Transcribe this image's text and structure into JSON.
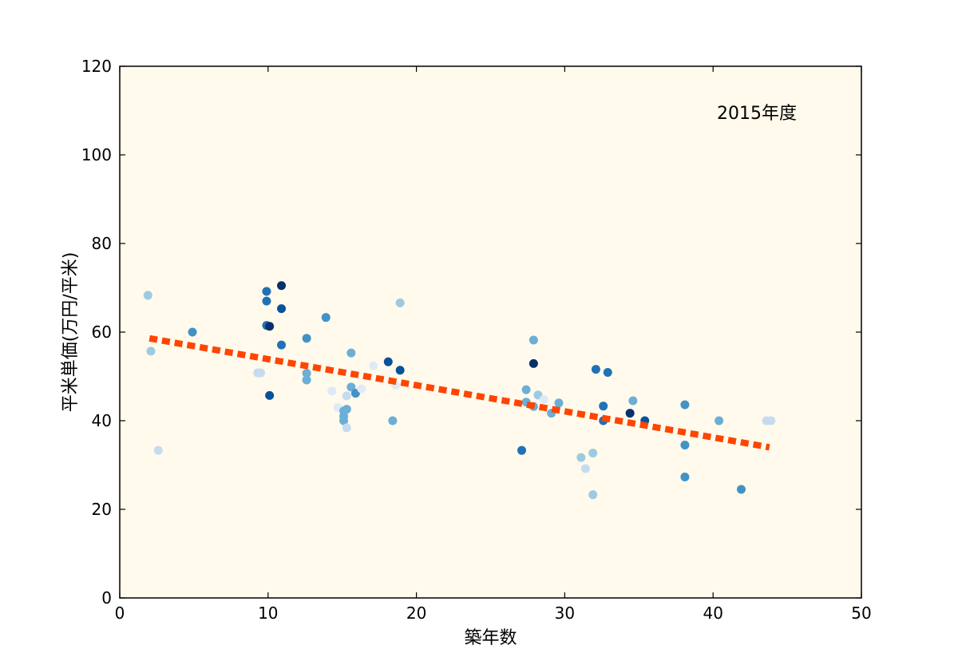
{
  "chart_data": {
    "type": "scatter",
    "title": "",
    "annotation": "2015年度",
    "xlabel": "築年数",
    "ylabel": "平米単価(万円/平米)",
    "xlim": [
      0,
      50
    ],
    "ylim": [
      0,
      120
    ],
    "xticks": [
      0,
      10,
      20,
      30,
      40,
      50
    ],
    "yticks": [
      0,
      20,
      40,
      60,
      80,
      100,
      120
    ],
    "grid": false,
    "plot_background": "#fffaeb",
    "trend_line": {
      "x": [
        2,
        43.8
      ],
      "y": [
        58.6,
        34.0
      ],
      "color": "#ff4500",
      "style": "dashed"
    },
    "points": [
      {
        "x": 1.9,
        "y": 68.3,
        "color": "#9ecae1"
      },
      {
        "x": 2.1,
        "y": 55.7,
        "color": "#9ecae1"
      },
      {
        "x": 2.6,
        "y": 33.3,
        "color": "#c6dbef"
      },
      {
        "x": 4.9,
        "y": 60.0,
        "color": "#4292c6"
      },
      {
        "x": 9.3,
        "y": 50.8,
        "color": "#c6dbef"
      },
      {
        "x": 9.5,
        "y": 50.8,
        "color": "#c6dbef"
      },
      {
        "x": 9.9,
        "y": 69.2,
        "color": "#2171b5"
      },
      {
        "x": 9.9,
        "y": 67.0,
        "color": "#2171b5"
      },
      {
        "x": 9.9,
        "y": 61.5,
        "color": "#2171b5"
      },
      {
        "x": 10.1,
        "y": 61.3,
        "color": "#08306b"
      },
      {
        "x": 10.1,
        "y": 45.7,
        "color": "#08519c"
      },
      {
        "x": 10.9,
        "y": 70.5,
        "color": "#08306b"
      },
      {
        "x": 10.9,
        "y": 65.3,
        "color": "#08519c"
      },
      {
        "x": 10.9,
        "y": 57.1,
        "color": "#2171b5"
      },
      {
        "x": 12.6,
        "y": 58.6,
        "color": "#4292c6"
      },
      {
        "x": 12.6,
        "y": 50.7,
        "color": "#6baed6"
      },
      {
        "x": 12.6,
        "y": 49.2,
        "color": "#6baed6"
      },
      {
        "x": 13.9,
        "y": 63.3,
        "color": "#4292c6"
      },
      {
        "x": 14.3,
        "y": 46.7,
        "color": "#deebf7"
      },
      {
        "x": 14.7,
        "y": 43.0,
        "color": "#deebf7"
      },
      {
        "x": 15.1,
        "y": 42.2,
        "color": "#6baed6"
      },
      {
        "x": 15.1,
        "y": 41.0,
        "color": "#6baed6"
      },
      {
        "x": 15.1,
        "y": 40.0,
        "color": "#6baed6"
      },
      {
        "x": 15.3,
        "y": 42.6,
        "color": "#6baed6"
      },
      {
        "x": 15.3,
        "y": 38.4,
        "color": "#c6dbef"
      },
      {
        "x": 15.3,
        "y": 45.6,
        "color": "#c6dbef"
      },
      {
        "x": 15.6,
        "y": 55.3,
        "color": "#6baed6"
      },
      {
        "x": 15.6,
        "y": 47.6,
        "color": "#6baed6"
      },
      {
        "x": 15.9,
        "y": 46.2,
        "color": "#4292c6"
      },
      {
        "x": 16.3,
        "y": 47.2,
        "color": "#deebf7"
      },
      {
        "x": 17.1,
        "y": 52.4,
        "color": "#deebf7"
      },
      {
        "x": 18.1,
        "y": 53.3,
        "color": "#08519c"
      },
      {
        "x": 18.4,
        "y": 40.0,
        "color": "#6baed6"
      },
      {
        "x": 18.6,
        "y": 48.0,
        "color": "#deebf7"
      },
      {
        "x": 18.9,
        "y": 51.4,
        "color": "#08519c"
      },
      {
        "x": 18.9,
        "y": 66.6,
        "color": "#9ecae1"
      },
      {
        "x": 27.1,
        "y": 33.3,
        "color": "#2171b5"
      },
      {
        "x": 27.4,
        "y": 47.0,
        "color": "#6baed6"
      },
      {
        "x": 27.4,
        "y": 44.2,
        "color": "#6baed6"
      },
      {
        "x": 27.9,
        "y": 58.2,
        "color": "#6baed6"
      },
      {
        "x": 27.9,
        "y": 52.9,
        "color": "#08306b"
      },
      {
        "x": 27.9,
        "y": 43.2,
        "color": "#6baed6"
      },
      {
        "x": 28.2,
        "y": 45.8,
        "color": "#9ecae1"
      },
      {
        "x": 28.6,
        "y": 44.8,
        "color": "#deebf7"
      },
      {
        "x": 29.1,
        "y": 41.7,
        "color": "#6baed6"
      },
      {
        "x": 29.6,
        "y": 44.0,
        "color": "#6baed6"
      },
      {
        "x": 31.1,
        "y": 31.7,
        "color": "#9ecae1"
      },
      {
        "x": 31.4,
        "y": 29.2,
        "color": "#c6dbef"
      },
      {
        "x": 31.9,
        "y": 32.7,
        "color": "#9ecae1"
      },
      {
        "x": 31.9,
        "y": 23.3,
        "color": "#9ecae1"
      },
      {
        "x": 32.1,
        "y": 51.6,
        "color": "#2171b5"
      },
      {
        "x": 32.6,
        "y": 43.3,
        "color": "#2171b5"
      },
      {
        "x": 32.6,
        "y": 40.0,
        "color": "#2171b5"
      },
      {
        "x": 32.9,
        "y": 50.9,
        "color": "#2171b5"
      },
      {
        "x": 34.4,
        "y": 41.7,
        "color": "#08306b"
      },
      {
        "x": 34.6,
        "y": 44.5,
        "color": "#6baed6"
      },
      {
        "x": 35.4,
        "y": 40.0,
        "color": "#08519c"
      },
      {
        "x": 38.1,
        "y": 43.6,
        "color": "#4292c6"
      },
      {
        "x": 38.1,
        "y": 34.5,
        "color": "#4292c6"
      },
      {
        "x": 38.1,
        "y": 27.3,
        "color": "#4292c6"
      },
      {
        "x": 40.4,
        "y": 40.0,
        "color": "#6baed6"
      },
      {
        "x": 41.9,
        "y": 24.5,
        "color": "#4292c6"
      },
      {
        "x": 43.6,
        "y": 40.0,
        "color": "#c6dbef"
      },
      {
        "x": 43.9,
        "y": 40.0,
        "color": "#c6dbef"
      }
    ]
  }
}
